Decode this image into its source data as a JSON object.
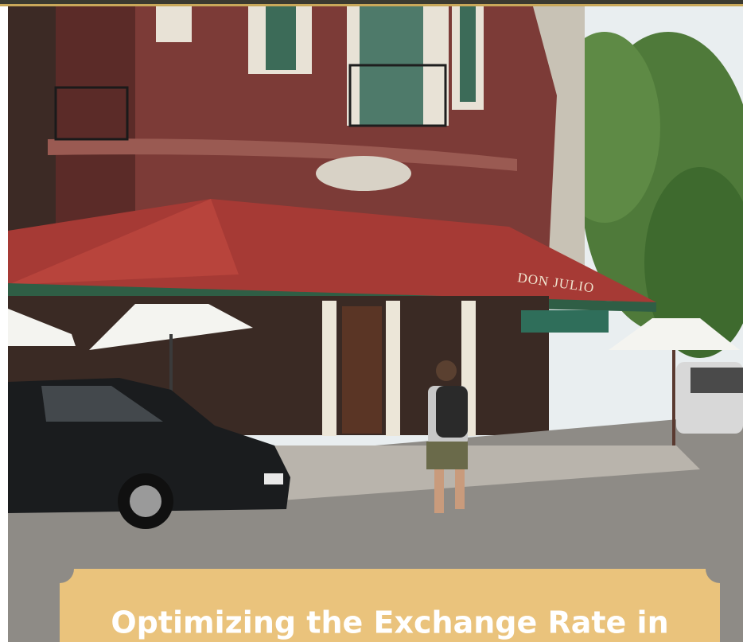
{
  "sign": "DON JULIO",
  "banner": {
    "title": "Optimizing the Exchange Rate in"
  }
}
